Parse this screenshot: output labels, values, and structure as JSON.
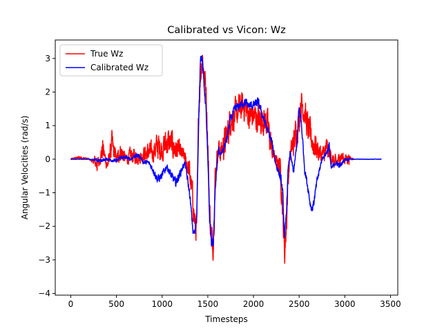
{
  "chart_data": {
    "type": "line",
    "title": "Calibrated vs Vicon: Wz",
    "xlabel": "Timesteps",
    "ylabel": "Angular Velocities (rad/s)",
    "xlim": [
      -170,
      3580
    ],
    "ylim": [
      -4.05,
      3.55
    ],
    "xticks": [
      0,
      500,
      1000,
      1500,
      2000,
      2500,
      3000,
      3500
    ],
    "yticks": [
      -4,
      -3,
      -2,
      -1,
      0,
      1,
      2,
      3
    ],
    "legend_position": "top-left",
    "grid": false,
    "series": [
      {
        "name": "True Wz",
        "color": "#ff0000",
        "noise": 0.35,
        "x": [
          0,
          100,
          200,
          300,
          350,
          400,
          450,
          500,
          550,
          600,
          650,
          700,
          750,
          800,
          850,
          900,
          950,
          1000,
          1050,
          1100,
          1150,
          1200,
          1250,
          1300,
          1340,
          1360,
          1380,
          1400,
          1420,
          1440,
          1460,
          1480,
          1500,
          1520,
          1540,
          1560,
          1580,
          1600,
          1620,
          1640,
          1700,
          1750,
          1800,
          1850,
          1900,
          1950,
          2000,
          2050,
          2100,
          2150,
          2200,
          2250,
          2280,
          2300,
          2320,
          2340,
          2360,
          2380,
          2400,
          2440,
          2480,
          2500,
          2520,
          2540,
          2560,
          2600,
          2650,
          2700,
          2750,
          2800,
          2850,
          2900,
          2950,
          3000,
          3050,
          3100
        ],
        "y": [
          0,
          0.05,
          0,
          -0.15,
          0.3,
          -0.2,
          0.4,
          0,
          0.25,
          0,
          0.1,
          0.1,
          0.05,
          0.15,
          0.2,
          0.2,
          0.4,
          0.3,
          0.5,
          0.45,
          0.3,
          0.2,
          0.05,
          -0.4,
          -1.3,
          -2.0,
          -2.0,
          1.5,
          2.5,
          3.1,
          2.4,
          2.2,
          0.5,
          -1.5,
          -2.4,
          -2.5,
          -0.6,
          0.1,
          0.3,
          0.2,
          0.6,
          1.2,
          1.3,
          1.5,
          1.6,
          1.3,
          1.3,
          1.2,
          1.2,
          1.1,
          0.3,
          -0.1,
          -0.1,
          -0.5,
          -1.5,
          -2.8,
          -2.0,
          -0.5,
          0.1,
          0.5,
          1.0,
          1.2,
          1.7,
          1.6,
          1.4,
          0.9,
          0.5,
          0.3,
          0.1,
          0.3,
          0.1,
          -0.2,
          0.1,
          0,
          0.05,
          0
        ]
      },
      {
        "name": "Calibrated Wz",
        "color": "#0000ff",
        "noise": 0.1,
        "x": [
          0,
          100,
          200,
          300,
          400,
          500,
          550,
          600,
          650,
          700,
          750,
          800,
          850,
          900,
          950,
          1000,
          1050,
          1100,
          1150,
          1200,
          1250,
          1300,
          1340,
          1360,
          1380,
          1400,
          1420,
          1440,
          1460,
          1480,
          1500,
          1520,
          1540,
          1560,
          1580,
          1600,
          1620,
          1640,
          1700,
          1750,
          1800,
          1850,
          1900,
          1950,
          2000,
          2050,
          2100,
          2150,
          2200,
          2250,
          2280,
          2300,
          2320,
          2340,
          2360,
          2380,
          2400,
          2440,
          2480,
          2500,
          2520,
          2540,
          2560,
          2600,
          2620,
          2640,
          2660,
          2700,
          2750,
          2800,
          2830,
          2850,
          2900,
          2950,
          3000,
          3050,
          3100,
          3200,
          3300,
          3400
        ],
        "y": [
          0,
          0,
          0,
          -0.05,
          0,
          -0.05,
          0.05,
          0.05,
          0,
          0.1,
          0.1,
          -0.1,
          -0.1,
          -0.3,
          -0.6,
          -0.5,
          -0.2,
          -0.5,
          -0.7,
          -0.4,
          -0.1,
          -1.0,
          -2.2,
          -2.2,
          -1.5,
          1.0,
          3.1,
          3.0,
          2.2,
          1.5,
          0,
          -1.8,
          -2.5,
          -2.5,
          -1.0,
          -0.2,
          0.3,
          0.1,
          0.5,
          1.2,
          1.5,
          1.6,
          1.7,
          1.6,
          1.6,
          1.7,
          1.3,
          0.9,
          0.5,
          -0.2,
          -0.4,
          -0.6,
          -1.0,
          -2.4,
          -1.6,
          -0.3,
          0.2,
          -0.4,
          0.6,
          1.5,
          1.2,
          0.5,
          -0.3,
          -0.9,
          -1.3,
          -1.5,
          -1.3,
          -0.6,
          0,
          0.2,
          0.4,
          -0.3,
          -0.1,
          -0.2,
          0,
          0,
          0,
          0,
          0,
          0
        ]
      }
    ]
  }
}
